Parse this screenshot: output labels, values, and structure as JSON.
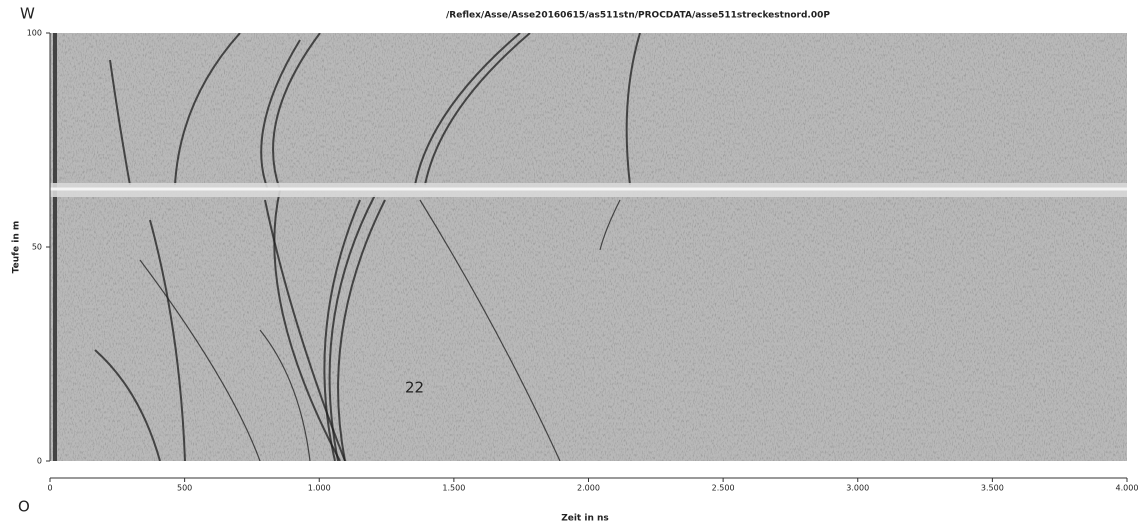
{
  "chart_data": {
    "type": "radargram",
    "title": "/Reflex/Asse/Asse20160615/as511stn/PROCDATA/asse511streckestnord.00P",
    "x_label": "Zeit in ns",
    "y_label": "Teufe in m",
    "side_labels": [
      "W",
      "O"
    ],
    "annotations": [
      "22"
    ],
    "xlim": [
      0,
      4000
    ],
    "ylim": [
      0,
      100
    ],
    "xticks": [
      0,
      500,
      {
        "value": 1000,
        "label": "1.000"
      },
      {
        "value": 1500,
        "label": "1.500"
      },
      {
        "value": 2000,
        "label": "2.000"
      },
      {
        "value": 2500,
        "label": "2.500"
      },
      {
        "value": 3000,
        "label": "3.000"
      },
      {
        "value": 3500,
        "label": "3.500"
      },
      {
        "value": 4000,
        "label": "4.000"
      }
    ],
    "yticks": [
      0,
      50,
      100
    ]
  }
}
